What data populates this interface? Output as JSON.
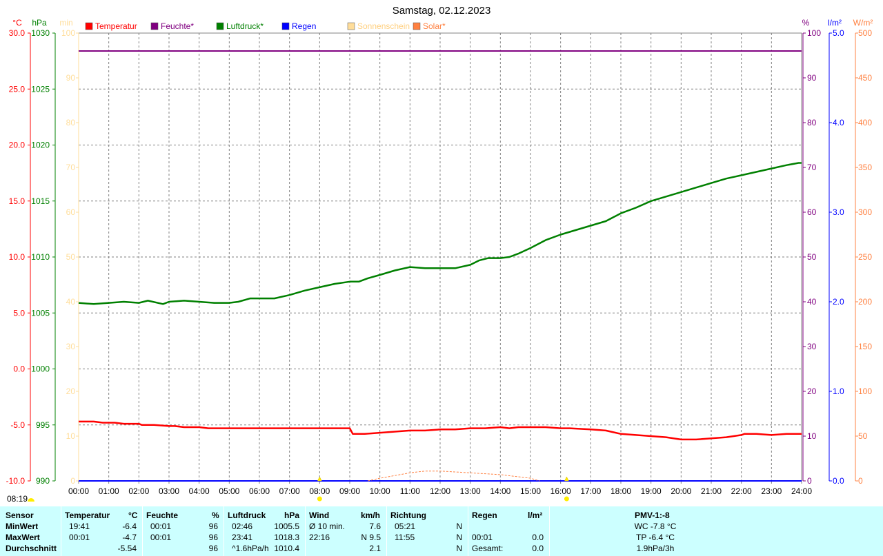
{
  "chart_data": {
    "type": "line",
    "title": "Samstag, 02.12.2023",
    "legend": [
      {
        "name": "Temperatur",
        "color": "#ff0000"
      },
      {
        "name": "Feuchte*",
        "color": "#800080"
      },
      {
        "name": "Luftdruck*",
        "color": "#008000"
      },
      {
        "name": "Regen",
        "color": "#0000ff"
      },
      {
        "name": "Sonnenschein",
        "color": "#ffdd99"
      },
      {
        "name": "Solar*",
        "color": "#ff8040"
      }
    ],
    "legend_position": "top",
    "grid": true,
    "x_ticks": [
      "00:00",
      "01:00",
      "02:00",
      "03:00",
      "04:00",
      "05:00",
      "06:00",
      "07:00",
      "08:00",
      "09:00",
      "10:00",
      "11:00",
      "12:00",
      "13:00",
      "14:00",
      "15:00",
      "16:00",
      "17:00",
      "18:00",
      "19:00",
      "20:00",
      "21:00",
      "22:00",
      "23:00",
      "24:00"
    ],
    "xlim": [
      0,
      24
    ],
    "axes": {
      "temp": {
        "unit": "°C",
        "range": [
          -10,
          30
        ],
        "ticks": [
          "30.0",
          "25.0",
          "20.0",
          "15.0",
          "10.0",
          "5.0",
          "0.0",
          "-5.0",
          "-10.0"
        ],
        "color": "#ff0000"
      },
      "pressure": {
        "unit": "hPa",
        "range": [
          990,
          1030
        ],
        "ticks": [
          "1030",
          "1025",
          "1020",
          "1015",
          "1010",
          "1005",
          "1000",
          "995",
          "990"
        ],
        "color": "#008000"
      },
      "sunshine": {
        "unit": "min",
        "range": [
          0,
          100
        ],
        "ticks": [
          "100",
          "90",
          "80",
          "70",
          "60",
          "50",
          "40",
          "30",
          "20",
          "10",
          "0"
        ],
        "color": "#ffdd99"
      },
      "humidity": {
        "unit": "%",
        "range": [
          0,
          100
        ],
        "ticks": [
          "100",
          "90",
          "80",
          "70",
          "60",
          "50",
          "40",
          "30",
          "20",
          "10",
          "0"
        ],
        "color": "#800080"
      },
      "rain": {
        "unit": "l/m²",
        "range": [
          0,
          5
        ],
        "ticks": [
          "5.0",
          "4.0",
          "3.0",
          "2.0",
          "1.0",
          "0.0"
        ],
        "color": "#0000ff"
      },
      "solar": {
        "unit": "W/m²",
        "range": [
          0,
          500
        ],
        "ticks": [
          "500",
          "450",
          "400",
          "350",
          "300",
          "250",
          "200",
          "150",
          "100",
          "50",
          "0"
        ],
        "color": "#ff8040"
      }
    },
    "series": [
      {
        "name": "Luftdruck*",
        "axis": "pressure",
        "x": [
          0,
          0.5,
          1,
          1.5,
          2,
          2.3,
          2.8,
          3,
          3.5,
          4,
          4.5,
          5,
          5.3,
          5.7,
          6,
          6.5,
          7,
          7.5,
          8,
          8.5,
          9,
          9.3,
          9.6,
          10,
          10.5,
          11,
          11.5,
          12,
          12.5,
          13,
          13.3,
          13.6,
          14,
          14.3,
          14.6,
          15,
          15.5,
          16,
          16.5,
          17,
          17.5,
          18,
          18.5,
          19,
          19.5,
          20,
          20.5,
          21,
          21.5,
          22,
          22.5,
          23,
          23.5,
          23.9,
          24
        ],
        "y": [
          1005.9,
          1005.8,
          1005.9,
          1006.0,
          1005.9,
          1006.1,
          1005.8,
          1006.0,
          1006.1,
          1006.0,
          1005.9,
          1005.9,
          1006.0,
          1006.3,
          1006.3,
          1006.3,
          1006.6,
          1007.0,
          1007.3,
          1007.6,
          1007.8,
          1007.8,
          1008.1,
          1008.4,
          1008.8,
          1009.1,
          1009.0,
          1009.0,
          1009.0,
          1009.3,
          1009.7,
          1009.9,
          1009.9,
          1010.0,
          1010.3,
          1010.8,
          1011.5,
          1012.0,
          1012.4,
          1012.8,
          1013.2,
          1013.9,
          1014.4,
          1015.0,
          1015.4,
          1015.8,
          1016.2,
          1016.6,
          1017.0,
          1017.3,
          1017.6,
          1017.9,
          1018.2,
          1018.4,
          1018.4
        ]
      },
      {
        "name": "Temperatur",
        "axis": "temp",
        "x": [
          0,
          0.5,
          0.8,
          1.2,
          1.5,
          2,
          2.1,
          2.5,
          3,
          3.2,
          3.5,
          4,
          4.3,
          4.7,
          5,
          5.5,
          6,
          6.5,
          7,
          7.5,
          8,
          8.5,
          9,
          9.1,
          9.5,
          10,
          10.5,
          11,
          11.5,
          12,
          12.5,
          13,
          13.5,
          14,
          14.3,
          14.6,
          15,
          15.5,
          16,
          16.3,
          17,
          17.5,
          18,
          18.5,
          19,
          19.5,
          20,
          20.5,
          21,
          21.5,
          22,
          22.1,
          22.5,
          23,
          23.5,
          23.7,
          24
        ],
        "y": [
          -4.7,
          -4.7,
          -4.8,
          -4.8,
          -4.9,
          -4.9,
          -5.0,
          -5.0,
          -5.1,
          -5.1,
          -5.2,
          -5.2,
          -5.3,
          -5.3,
          -5.3,
          -5.3,
          -5.3,
          -5.3,
          -5.3,
          -5.3,
          -5.3,
          -5.3,
          -5.3,
          -5.8,
          -5.8,
          -5.7,
          -5.6,
          -5.5,
          -5.5,
          -5.4,
          -5.4,
          -5.3,
          -5.3,
          -5.2,
          -5.3,
          -5.2,
          -5.2,
          -5.2,
          -5.3,
          -5.3,
          -5.4,
          -5.5,
          -5.8,
          -5.9,
          -6.0,
          -6.1,
          -6.3,
          -6.3,
          -6.2,
          -6.1,
          -5.9,
          -5.8,
          -5.8,
          -5.9,
          -5.8,
          -5.8,
          -5.8
        ]
      },
      {
        "name": "Feuchte*",
        "axis": "humidity",
        "x": [
          0,
          24
        ],
        "y": [
          96,
          96
        ]
      },
      {
        "name": "Regen",
        "axis": "rain",
        "x": [
          0,
          24
        ],
        "y": [
          0,
          0
        ]
      },
      {
        "name": "Solar*",
        "axis": "solar",
        "x": [
          9.6,
          10,
          10.5,
          11,
          11.5,
          12,
          12.5,
          13,
          13.5,
          14,
          14.5,
          15,
          15.3
        ],
        "y": [
          0,
          3,
          6,
          9,
          11,
          11,
          10,
          9,
          8,
          7,
          5,
          3,
          0
        ]
      }
    ],
    "markers": [
      {
        "label": "08:19",
        "x": 8.0
      },
      {
        "x": 16.2
      }
    ]
  },
  "stats": {
    "headers": {
      "sensor": "Sensor",
      "temperature": "Temperatur",
      "temperature_unit": "°C",
      "humidity": "Feuchte",
      "humidity_unit": "%",
      "pressure": "Luftdruck",
      "pressure_unit": "hPa",
      "wind": "Wind",
      "wind_unit": "km/h",
      "direction": "Richtung",
      "rain": "Regen",
      "rain_unit": "l/m²",
      "pmv": "PMV-1:-8"
    },
    "rows": [
      {
        "label": "MinWert",
        "temp_time": "19:41",
        "temp_val": "-6.4",
        "hum_time": "00:01",
        "hum_val": "96",
        "press_time": "02:46",
        "press_val": "1005.5",
        "wind_label": "Ø 10 min.",
        "wind_val": "7.6",
        "dir_time": "05:21",
        "dir_val": "N",
        "rain_label": "",
        "rain_val": "",
        "extra": "WC -7.8 °C"
      },
      {
        "label": "MaxWert",
        "temp_time": "00:01",
        "temp_val": "-4.7",
        "hum_time": "00:01",
        "hum_val": "96",
        "press_time": "23:41",
        "press_val": "1018.3",
        "wind_label": "22:16",
        "wind_val": "N 9.5",
        "dir_time": "11:55",
        "dir_val": "N",
        "rain_label": "00:01",
        "rain_val": "0.0",
        "extra": "TP -6.4 °C"
      },
      {
        "label": "Durchschnitt",
        "temp_time": "",
        "temp_val": "-5.54",
        "hum_time": "",
        "hum_val": "96",
        "press_time": "^1.6hPa/h",
        "press_val": "1010.4",
        "wind_label": "",
        "wind_val": "2.1",
        "dir_time": "",
        "dir_val": "N",
        "rain_label": "Gesamt:",
        "rain_val": "0.0",
        "extra": "1.9hPa/3h"
      }
    ]
  }
}
